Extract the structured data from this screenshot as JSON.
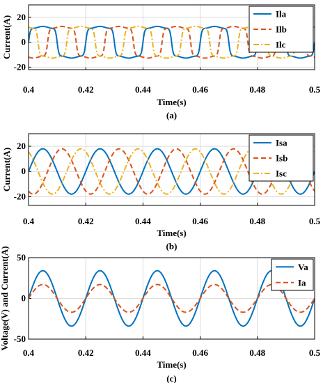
{
  "chart_data": [
    {
      "type": "line",
      "caption": "(a)",
      "xlabel": "Time(s)",
      "ylabel": "Current(A)",
      "xlim": [
        0.4,
        0.5
      ],
      "ylim": [
        -22,
        30
      ],
      "xticks": [
        "0.4",
        "0.42",
        "0.44",
        "0.46",
        "0.48",
        "0.5"
      ],
      "yticks": [
        "20",
        "0",
        "-20"
      ],
      "grid": true,
      "legend_position": "top-right",
      "waveform": "quasi-square",
      "fundamental_hz": 50,
      "series": [
        {
          "name": "Ila",
          "color": "#0072bd",
          "dash": "solid",
          "amplitude": 12,
          "phase_deg": 0
        },
        {
          "name": "Ilb",
          "color": "#d95319",
          "dash": "dashed",
          "amplitude": 12,
          "phase_deg": -120
        },
        {
          "name": "Ilc",
          "color": "#edb120",
          "dash": "dashdot",
          "amplitude": 12,
          "phase_deg": 120
        }
      ]
    },
    {
      "type": "line",
      "caption": "(b)",
      "xlabel": "Time(s)",
      "ylabel": "Current(A)",
      "xlim": [
        0.4,
        0.5
      ],
      "ylim": [
        -27,
        30
      ],
      "xticks": [
        "0.4",
        "0.42",
        "0.44",
        "0.46",
        "0.48",
        "0.5"
      ],
      "yticks": [
        "20",
        "0",
        "-20"
      ],
      "grid": true,
      "legend_position": "top-right",
      "waveform": "sinusoid",
      "fundamental_hz": 50,
      "series": [
        {
          "name": "Isa",
          "color": "#0072bd",
          "dash": "solid",
          "amplitude": 18,
          "phase_deg": 0
        },
        {
          "name": "Isb",
          "color": "#d95319",
          "dash": "dashed",
          "amplitude": 18,
          "phase_deg": -120
        },
        {
          "name": "Isc",
          "color": "#edb120",
          "dash": "dashdot",
          "amplitude": 18,
          "phase_deg": 120
        }
      ]
    },
    {
      "type": "line",
      "caption": "(c)",
      "xlabel": "Time(s)",
      "ylabel": "Voltage(V) and Current(A)",
      "xlim": [
        0.4,
        0.5
      ],
      "ylim": [
        -50,
        50
      ],
      "xticks": [
        "0.4",
        "0.42",
        "0.44",
        "0.46",
        "0.48",
        "0.5"
      ],
      "yticks": [
        "50",
        "0",
        "-50"
      ],
      "grid": true,
      "legend_position": "top-right",
      "waveform": "sinusoid",
      "fundamental_hz": 50,
      "series": [
        {
          "name": "Va",
          "color": "#0072bd",
          "dash": "solid",
          "amplitude": 34,
          "phase_deg": 0
        },
        {
          "name": "Ia",
          "color": "#d95319",
          "dash": "dashed",
          "amplitude": 17,
          "phase_deg": 0
        }
      ]
    }
  ]
}
